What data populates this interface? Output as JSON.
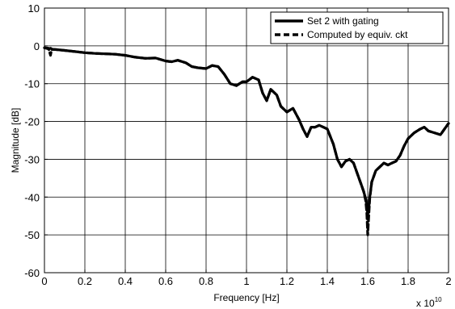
{
  "chart_data": {
    "type": "line",
    "title": "",
    "xlabel": "Frequency [Hz]",
    "ylabel": "Magnitude [dB]",
    "x_multiplier_label": {
      "base": "x 10",
      "exponent": "10"
    },
    "xlim": [
      0,
      2
    ],
    "ylim": [
      -60,
      10
    ],
    "xticks": [
      0,
      0.2,
      0.4,
      0.6,
      0.8,
      1,
      1.2,
      1.4,
      1.6,
      1.8,
      2
    ],
    "xtick_labels": [
      "0",
      "0.2",
      "0.4",
      "0.6",
      "0.8",
      "1",
      "1.2",
      "1.4",
      "1.6",
      "1.8",
      "2"
    ],
    "yticks": [
      10,
      0,
      -10,
      -20,
      -30,
      -40,
      -50,
      -60
    ],
    "ytick_labels": [
      "10",
      "0",
      "-10",
      "-20",
      "-30",
      "-40",
      "-50",
      "-60"
    ],
    "grid": true,
    "legend_position": "top-right",
    "series": [
      {
        "name": "Set 2 with gating",
        "style": "solid",
        "x": [
          0,
          0.02,
          0.03,
          0.035,
          0.04,
          0.06,
          0.1,
          0.15,
          0.2,
          0.25,
          0.3,
          0.35,
          0.4,
          0.45,
          0.5,
          0.55,
          0.6,
          0.63,
          0.66,
          0.7,
          0.73,
          0.76,
          0.8,
          0.83,
          0.86,
          0.89,
          0.92,
          0.95,
          0.98,
          1.0,
          1.03,
          1.06,
          1.08,
          1.1,
          1.12,
          1.15,
          1.17,
          1.2,
          1.23,
          1.26,
          1.28,
          1.3,
          1.32,
          1.34,
          1.36,
          1.38,
          1.4,
          1.43,
          1.45,
          1.47,
          1.49,
          1.51,
          1.53,
          1.55,
          1.57,
          1.58,
          1.59,
          1.595,
          1.6,
          1.605,
          1.61,
          1.62,
          1.64,
          1.66,
          1.68,
          1.7,
          1.72,
          1.74,
          1.76,
          1.78,
          1.8,
          1.83,
          1.86,
          1.88,
          1.9,
          1.93,
          1.96,
          1.98,
          2.0
        ],
        "values": [
          -0.5,
          -0.8,
          -0.6,
          -0.8,
          -0.9,
          -1.0,
          -1.2,
          -1.5,
          -1.8,
          -2.0,
          -2.1,
          -2.2,
          -2.5,
          -3.0,
          -3.3,
          -3.2,
          -4.0,
          -4.2,
          -3.8,
          -4.5,
          -5.5,
          -5.8,
          -6.0,
          -5.2,
          -5.5,
          -7.5,
          -10.0,
          -10.5,
          -9.5,
          -9.5,
          -8.3,
          -9.0,
          -12.5,
          -14.5,
          -11.5,
          -13.0,
          -16.0,
          -17.5,
          -16.5,
          -19.5,
          -22.0,
          -24.0,
          -21.5,
          -21.5,
          -21.0,
          -21.5,
          -22.0,
          -26.0,
          -30.0,
          -32.0,
          -30.5,
          -30.0,
          -31.0,
          -34.0,
          -37.0,
          -38.5,
          -40.5,
          -42.0,
          -44.5,
          -43.0,
          -40.0,
          -36.0,
          -33.0,
          -32.0,
          -31.0,
          -31.5,
          -31.0,
          -30.5,
          -29.0,
          -26.5,
          -24.5,
          -23.0,
          -22.0,
          -21.5,
          -22.5,
          -23.0,
          -23.5,
          -22.0,
          -20.5
        ]
      },
      {
        "name": "Computed by equiv. ckt",
        "style": "dashed",
        "x": [
          0,
          0.02,
          0.03,
          0.035,
          0.04,
          0.06,
          0.1,
          0.15,
          0.2,
          0.25,
          0.3,
          0.35,
          0.4,
          0.45,
          0.5,
          0.55,
          0.6,
          0.63,
          0.66,
          0.7,
          0.73,
          0.76,
          0.8,
          0.83,
          0.86,
          0.89,
          0.92,
          0.95,
          0.98,
          1.0,
          1.03,
          1.06,
          1.08,
          1.1,
          1.12,
          1.15,
          1.17,
          1.2,
          1.23,
          1.26,
          1.28,
          1.3,
          1.32,
          1.34,
          1.36,
          1.38,
          1.4,
          1.43,
          1.45,
          1.47,
          1.49,
          1.51,
          1.53,
          1.55,
          1.57,
          1.58,
          1.59,
          1.595,
          1.6,
          1.605,
          1.61,
          1.62,
          1.64,
          1.66,
          1.68,
          1.7,
          1.72,
          1.74,
          1.76,
          1.78,
          1.8,
          1.83,
          1.86,
          1.88,
          1.9,
          1.93,
          1.96,
          1.98,
          2.0
        ],
        "values": [
          -0.5,
          -0.6,
          -2.5,
          -1.0,
          -0.9,
          -1.0,
          -1.2,
          -1.5,
          -1.8,
          -2.0,
          -2.1,
          -2.2,
          -2.5,
          -3.0,
          -3.3,
          -3.2,
          -4.0,
          -4.2,
          -3.8,
          -4.5,
          -5.5,
          -5.8,
          -6.0,
          -5.2,
          -5.5,
          -7.5,
          -10.0,
          -10.5,
          -9.5,
          -9.5,
          -8.3,
          -9.0,
          -12.5,
          -14.5,
          -11.5,
          -13.0,
          -16.0,
          -17.5,
          -16.5,
          -19.5,
          -22.0,
          -24.0,
          -21.5,
          -21.5,
          -21.0,
          -21.5,
          -22.0,
          -26.0,
          -30.0,
          -32.0,
          -30.5,
          -30.0,
          -31.0,
          -34.0,
          -37.0,
          -38.5,
          -41.0,
          -44.0,
          -50.0,
          -45.0,
          -40.5,
          -36.0,
          -33.0,
          -32.0,
          -31.0,
          -31.5,
          -31.0,
          -30.5,
          -29.0,
          -26.5,
          -24.5,
          -23.0,
          -22.0,
          -21.5,
          -22.5,
          -23.0,
          -23.5,
          -22.0,
          -20.5
        ]
      }
    ]
  }
}
